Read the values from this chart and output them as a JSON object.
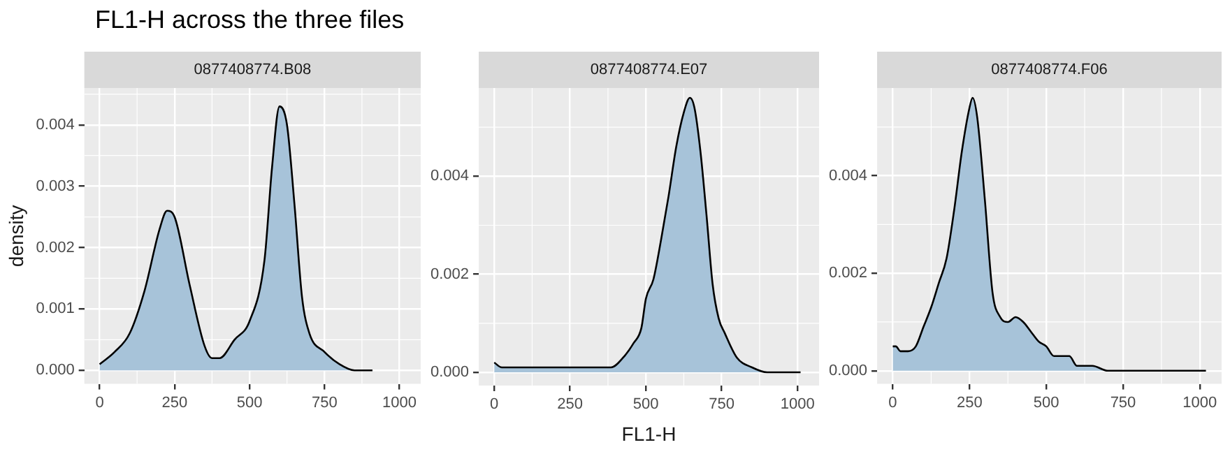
{
  "chart_data": [
    {
      "type": "area",
      "title": "FL1-H across the three files",
      "subtitle": "0877408774.B08",
      "ylabel": "density",
      "grid": true,
      "x": [
        0,
        50,
        100,
        150,
        200,
        225,
        250,
        300,
        350,
        375,
        400,
        450,
        500,
        550,
        575,
        600,
        625,
        650,
        675,
        700,
        750,
        800,
        850,
        910
      ],
      "series": [
        {
          "color": "#a7c3d9",
          "values": [
            0.0001,
            0.0003,
            0.0006,
            0.0013,
            0.0023,
            0.0026,
            0.0025,
            0.0014,
            0.0004,
            0.0002,
            0.0002,
            0.0005,
            0.0008,
            0.0018,
            0.0033,
            0.0043,
            0.004,
            0.0027,
            0.0012,
            0.0006,
            0.0003,
            0.0001,
            0,
            0
          ]
        }
      ],
      "xlim": [
        -51,
        1071
      ],
      "xticks": [
        0,
        250,
        500,
        750,
        1000
      ],
      "ylim": [
        -0.00022,
        0.0046
      ],
      "yticks": [
        {
          "value": 0,
          "label": "0.000"
        },
        {
          "value": 0.001,
          "label": "0.001"
        },
        {
          "value": 0.002,
          "label": "0.002"
        },
        {
          "value": 0.003,
          "label": "0.003"
        },
        {
          "value": 0.004,
          "label": "0.004"
        }
      ]
    },
    {
      "type": "area",
      "subtitle": "0877408774.E07",
      "xlabel": "FL1-H",
      "grid": true,
      "x": [
        0,
        25,
        100,
        125,
        150,
        200,
        225,
        300,
        350,
        385,
        425,
        460,
        485,
        500,
        525,
        550,
        575,
        600,
        625,
        645,
        660,
        680,
        700,
        720,
        740,
        760,
        800,
        850,
        900,
        1010
      ],
      "series": [
        {
          "color": "#a7c3d9",
          "values": [
            0.0002,
            0.0001,
            0.0001,
            0.0001,
            0.0001,
            0.0001,
            0.0001,
            0.0001,
            0.0001,
            0.0001,
            0.0003,
            0.0006,
            0.0009,
            0.0015,
            0.0019,
            0.0027,
            0.0036,
            0.0046,
            0.0053,
            0.0056,
            0.0054,
            0.0045,
            0.0032,
            0.0018,
            0.0011,
            0.0008,
            0.0003,
            0.0001,
            0,
            0
          ]
        }
      ],
      "xlim": [
        -51,
        1071
      ],
      "xticks": [
        0,
        250,
        500,
        750,
        1000
      ],
      "ylim": [
        -0.00027,
        0.0058
      ],
      "yticks": [
        {
          "value": 0,
          "label": "0.000"
        },
        {
          "value": 0.002,
          "label": "0.002"
        },
        {
          "value": 0.004,
          "label": "0.004"
        }
      ]
    },
    {
      "type": "area",
      "subtitle": "0877408774.F06",
      "grid": true,
      "x": [
        0,
        10,
        25,
        50,
        75,
        100,
        125,
        150,
        175,
        200,
        225,
        250,
        260,
        275,
        300,
        325,
        350,
        375,
        400,
        425,
        450,
        475,
        500,
        525,
        550,
        575,
        600,
        650,
        700,
        750,
        800,
        900,
        1020
      ],
      "series": [
        {
          "color": "#a7c3d9",
          "values": [
            0.0005,
            0.0005,
            0.0004,
            0.0004,
            0.0005,
            0.0009,
            0.0013,
            0.0018,
            0.0023,
            0.0033,
            0.0045,
            0.0054,
            0.0056,
            0.0052,
            0.0035,
            0.0016,
            0.0011,
            0.001,
            0.0011,
            0.001,
            0.0008,
            0.0006,
            0.0005,
            0.0003,
            0.0003,
            0.0003,
            0.0001,
            0.0001,
            0,
            0,
            0,
            0,
            0
          ]
        }
      ],
      "xlim": [
        -51,
        1071
      ],
      "xticks": [
        0,
        250,
        500,
        750,
        1000
      ],
      "ylim": [
        -0.00027,
        0.0058
      ],
      "yticks": [
        {
          "value": 0,
          "label": "0.000"
        },
        {
          "value": 0.002,
          "label": "0.002"
        },
        {
          "value": 0.004,
          "label": "0.004"
        }
      ]
    }
  ]
}
